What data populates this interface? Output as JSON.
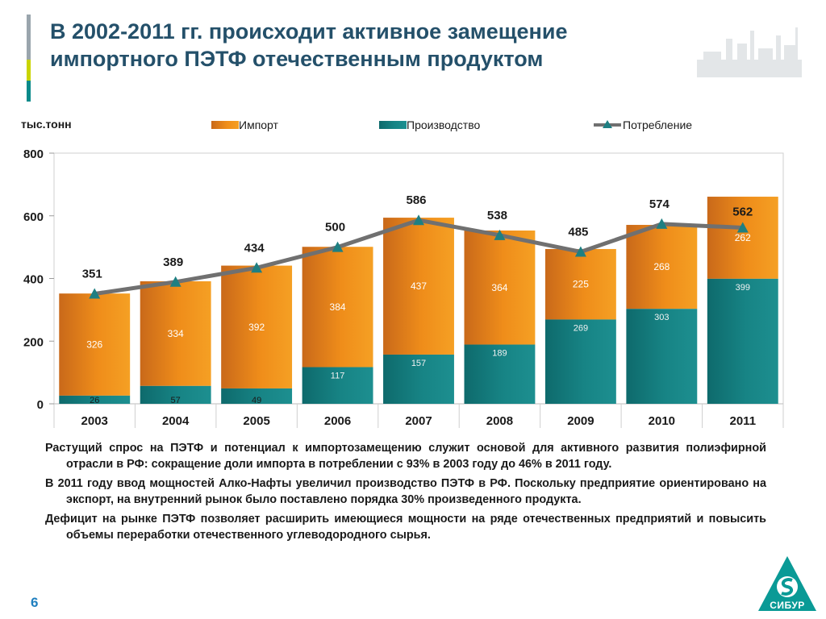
{
  "header": {
    "title_line1": "В 2002-2011 гг. происходит активное замещение",
    "title_line2": "импортного ПЭТФ отечественным продуктом",
    "accent_colors": [
      "#9aa5ad",
      "#c9d400",
      "#0a8a8a"
    ]
  },
  "chart_data": {
    "type": "bar",
    "stacked": true,
    "unit_label": "тыс.тонн",
    "categories": [
      "2003",
      "2004",
      "2005",
      "2006",
      "2007",
      "2008",
      "2009",
      "2010",
      "2011"
    ],
    "series": [
      {
        "name": "Производство",
        "kind": "bar",
        "color": "#137a7c",
        "values": [
          26,
          57,
          49,
          117,
          157,
          189,
          269,
          303,
          399
        ]
      },
      {
        "name": "Импорт",
        "kind": "bar",
        "color": "#e68a1c",
        "values": [
          326,
          334,
          392,
          384,
          437,
          364,
          225,
          268,
          262
        ]
      },
      {
        "name": "Потребление",
        "kind": "line",
        "color": "#707070",
        "marker": "triangle",
        "marker_color": "#1e7f82",
        "values": [
          351,
          389,
          434,
          500,
          586,
          538,
          485,
          574,
          562
        ]
      }
    ],
    "legend_order": [
      "Импорт",
      "Производство",
      "Потребление"
    ],
    "legend_position": "top",
    "ylim": [
      0,
      800
    ],
    "yticks": [
      0,
      200,
      400,
      600,
      800
    ],
    "grid": false
  },
  "paragraphs": [
    "Растущий спрос на ПЭТФ и потенциал к импортозамещению служит основой для активного развития полиэфирной отрасли в РФ:  сокращение доли импорта в потреблении с 93% в 2003 году до 46% в 2011 году.",
    "В 2011 году ввод мощностей Алко-Нафты увеличил производство ПЭТФ в РФ. Поскольку предприятие ориентировано на экспорт, на внутренний рынок было поставлено порядка 30% произведенного продукта.",
    "Дефицит на рынке ПЭТФ позволяет  расширить имеющиеся мощности на ряде отечественных предприятий и повысить объемы переработки отечественного углеводородного сырья."
  ],
  "footer": {
    "page_number": "6",
    "logo_text": "СИБУР",
    "logo_color": "#0a9a96"
  }
}
